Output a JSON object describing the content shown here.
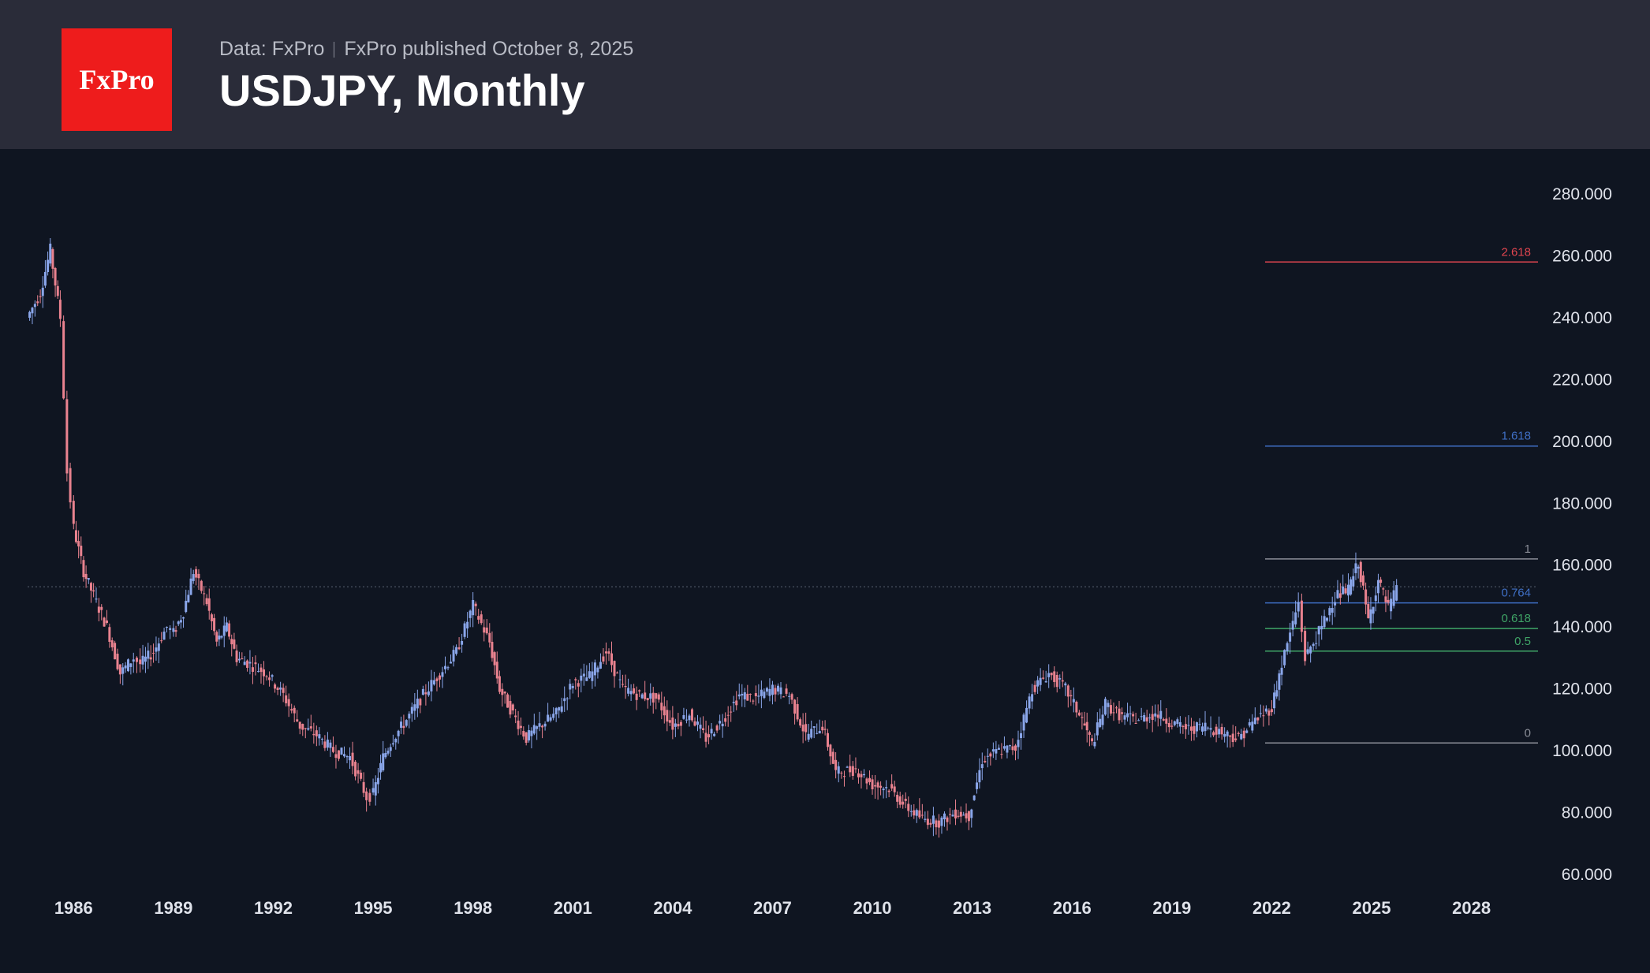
{
  "header": {
    "logo_text": "FxPro",
    "data_source": "Data: FxPro",
    "published": "FxPro published October 8, 2025",
    "title": "USDJPY, Monthly"
  },
  "colors": {
    "header_bg": "#2a2c39",
    "chart_bg": "#0f1521",
    "logo_bg": "#ee1c1c",
    "candle_up": "#8aa6ea",
    "candle_down": "#e9828f",
    "fib_red": "#e0454f",
    "fib_blue": "#3f6fc5",
    "fib_grey": "#8b8e98",
    "fib_green": "#3fa466"
  },
  "chart_data": {
    "type": "line",
    "title": "USDJPY, Monthly",
    "xlabel": "",
    "ylabel": "",
    "x_ticks": [
      "1986",
      "1989",
      "1992",
      "1995",
      "1998",
      "2001",
      "2004",
      "2007",
      "2010",
      "2013",
      "2016",
      "2019",
      "2022",
      "2025",
      "2028"
    ],
    "y_ticks": [
      "280.000",
      "260.000",
      "240.000",
      "220.000",
      "200.000",
      "180.000",
      "160.000",
      "140.000",
      "120.000",
      "100.000",
      "80.000",
      "60.000"
    ],
    "ylim": [
      60,
      280
    ],
    "xlim": [
      1984.5,
      2030.0
    ],
    "grid": false,
    "current_price_line": 153,
    "series": [
      {
        "x": [
          1984.6,
          1985.0,
          1985.3,
          1985.6,
          1985.8,
          1986.0,
          1986.3,
          1986.6,
          1987.0,
          1987.4,
          1987.8,
          1988.0,
          1988.4,
          1988.8,
          1989.0,
          1989.3,
          1989.6,
          1990.0,
          1990.3,
          1990.6,
          1990.9,
          1991.3,
          1991.8,
          1992.3,
          1992.8,
          1993.3,
          1993.8,
          1994.3,
          1994.8,
          1995.0,
          1995.3,
          1995.6,
          1996.0,
          1996.5,
          1997.0,
          1997.5,
          1998.0,
          1998.5,
          1998.8,
          1999.2,
          1999.6,
          2000.0,
          2000.5,
          2001.0,
          2001.5,
          2002.0,
          2002.5,
          2003.0,
          2003.5,
          2004.0,
          2004.5,
          2005.0,
          2005.5,
          2006.0,
          2006.5,
          2007.0,
          2007.5,
          2008.0,
          2008.5,
          2008.9,
          2009.5,
          2010.0,
          2010.5,
          2011.0,
          2011.5,
          2012.0,
          2012.5,
          2012.9,
          2013.3,
          2013.8,
          2014.3,
          2014.8,
          2015.3,
          2015.8,
          2016.3,
          2016.6,
          2017.0,
          2017.5,
          2018.0,
          2018.5,
          2019.0,
          2019.5,
          2020.0,
          2020.5,
          2021.0,
          2021.5,
          2022.0,
          2022.3,
          2022.8,
          2023.0,
          2023.5,
          2023.9,
          2024.3,
          2024.6,
          2024.9,
          2025.2,
          2025.5,
          2025.75
        ],
        "values": [
          240,
          248,
          262,
          240,
          190,
          172,
          158,
          150,
          140,
          125,
          130,
          128,
          132,
          140,
          138,
          145,
          158,
          148,
          135,
          140,
          130,
          128,
          125,
          118,
          108,
          105,
          100,
          98,
          85,
          86,
          98,
          104,
          110,
          118,
          125,
          132,
          147,
          135,
          120,
          112,
          104,
          108,
          112,
          122,
          124,
          132,
          120,
          118,
          117,
          108,
          112,
          104,
          110,
          118,
          117,
          120,
          118,
          105,
          108,
          93,
          94,
          89,
          88,
          82,
          78,
          77,
          80,
          79,
          97,
          100,
          101,
          120,
          125,
          120,
          110,
          102,
          115,
          111,
          110,
          112,
          109,
          107,
          108,
          106,
          104,
          110,
          114,
          128,
          148,
          130,
          140,
          150,
          152,
          161,
          142,
          155,
          146,
          152
        ]
      }
    ],
    "fibonacci": [
      {
        "label": "2.618",
        "value": 258
      },
      {
        "label": "1.618",
        "value": 198.5
      },
      {
        "label": "1",
        "value": 162
      },
      {
        "label": "0.764",
        "value": 147.8
      },
      {
        "label": "0.618",
        "value": 139.5
      },
      {
        "label": "0.5",
        "value": 132.2
      },
      {
        "label": "0",
        "value": 102.5
      }
    ],
    "fib_xrange": [
      2021.8,
      2030.0
    ]
  }
}
